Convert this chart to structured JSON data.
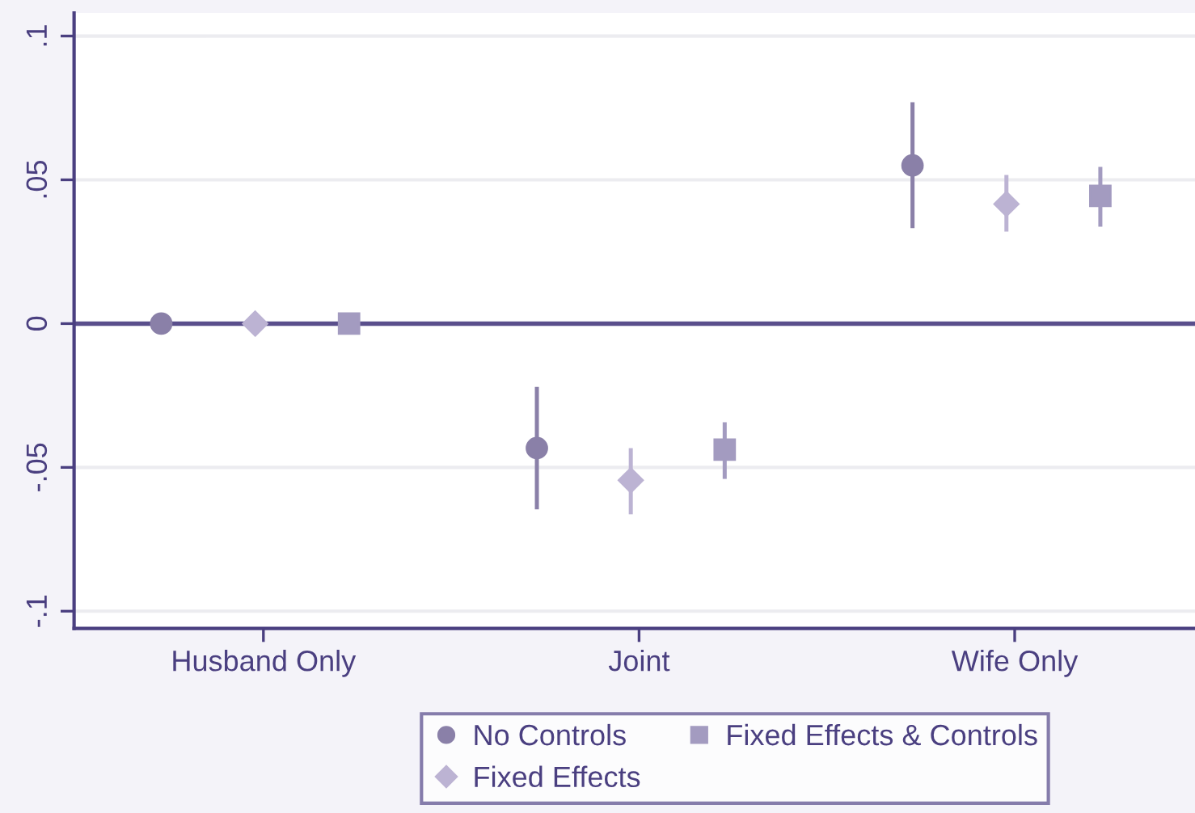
{
  "chart_data": {
    "type": "scatter",
    "categories": [
      "Husband Only",
      "Joint",
      "Wife Only"
    ],
    "series": [
      {
        "name": "No Controls",
        "color": "#8a80a8",
        "marker": "circle",
        "values": [
          0,
          -0.0433,
          0.055
        ],
        "errors": [
          null,
          [
            -0.0646,
            -0.022
          ],
          [
            0.0332,
            0.077
          ]
        ]
      },
      {
        "name": "Fixed Effects",
        "color": "#bcb3d3",
        "marker": "diamond",
        "values": [
          0,
          -0.0545,
          0.0416
        ],
        "errors": [
          null,
          [
            -0.0663,
            -0.0433
          ],
          [
            0.032,
            0.0517
          ]
        ]
      },
      {
        "name": "Fixed Effects & Controls",
        "color": "#a39bc0",
        "marker": "square",
        "values": [
          0,
          -0.0438,
          0.0444
        ],
        "errors": [
          null,
          [
            -0.054,
            -0.0343
          ],
          [
            0.0337,
            0.0545
          ]
        ]
      }
    ],
    "ylim": [
      -0.106,
      0.108
    ],
    "yticks": [
      {
        "value": -0.1,
        "label": "-.1"
      },
      {
        "value": -0.05,
        "label": "-.05"
      },
      0,
      {
        "value": 0.05,
        "label": ".05"
      },
      {
        "value": 0.1,
        "label": ".1"
      }
    ],
    "ref_lines": [
      {
        "axis": "y",
        "value": 0,
        "color": "#5a4f8c"
      }
    ],
    "grid": "y",
    "legend": "bottom"
  }
}
